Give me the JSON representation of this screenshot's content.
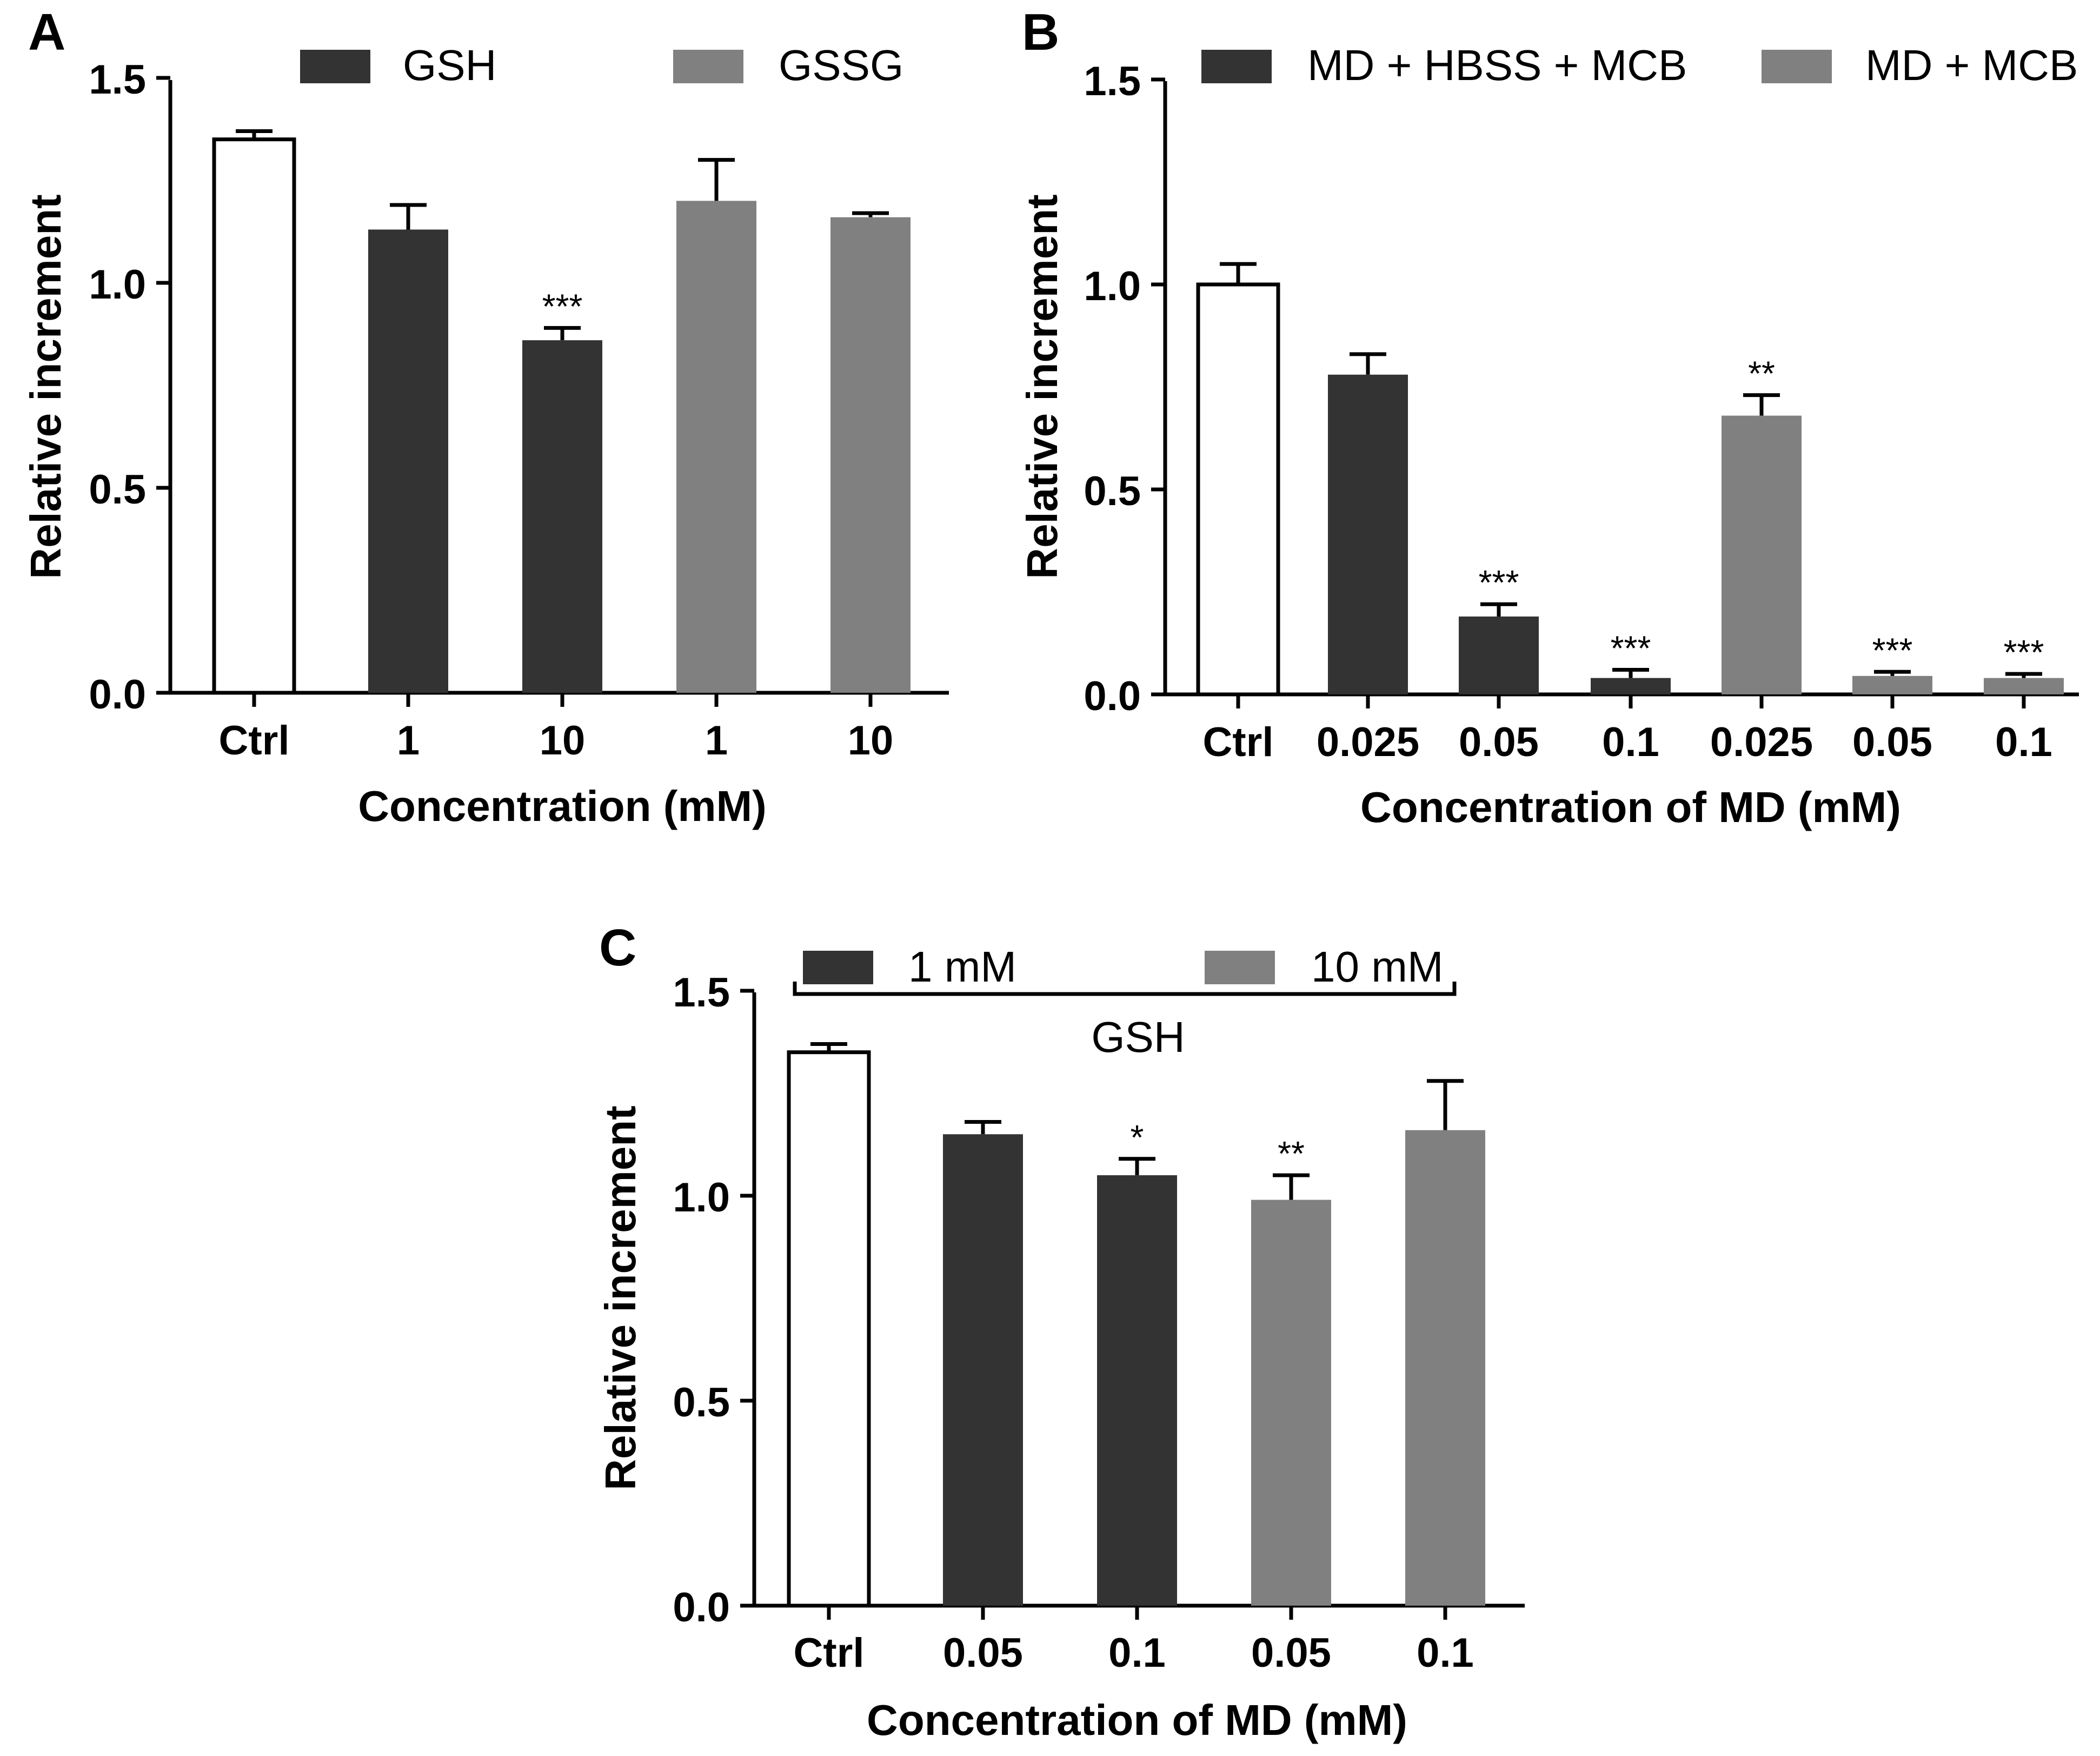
{
  "colors": {
    "ctrl_fill": "#ffffff",
    "dark": "#333333",
    "gray": "#808080",
    "axis": "#000000"
  },
  "chart_data": [
    {
      "panel": "A",
      "type": "bar",
      "xlabel": "Concentration (mM)",
      "ylabel": "Relative increment",
      "ylim": [
        0,
        1.5
      ],
      "yticks": [
        "0.0",
        "0.5",
        "1.0",
        "1.5"
      ],
      "tick_values": [
        0,
        0.5,
        1.0,
        1.5
      ],
      "legend": [
        {
          "label": "GSH",
          "group": "dark"
        },
        {
          "label": "GSSG",
          "group": "gray"
        }
      ],
      "bars": [
        {
          "category": "Ctrl",
          "value": 1.35,
          "error": 0.02,
          "group": "ctrl",
          "sig": ""
        },
        {
          "category": "1",
          "value": 1.13,
          "error": 0.06,
          "group": "dark",
          "sig": ""
        },
        {
          "category": "10",
          "value": 0.86,
          "error": 0.03,
          "group": "dark",
          "sig": "***"
        },
        {
          "category": "1",
          "value": 1.2,
          "error": 0.1,
          "group": "gray",
          "sig": ""
        },
        {
          "category": "10",
          "value": 1.16,
          "error": 0.01,
          "group": "gray",
          "sig": ""
        }
      ]
    },
    {
      "panel": "B",
      "type": "bar",
      "xlabel": "Concentration of MD (mM)",
      "ylabel": "Relative increment",
      "ylim": [
        0,
        1.5
      ],
      "yticks": [
        "0.0",
        "0.5",
        "1.0",
        "1.5"
      ],
      "tick_values": [
        0,
        0.5,
        1.0,
        1.5
      ],
      "legend": [
        {
          "label": "MD + HBSS + MCB",
          "group": "dark"
        },
        {
          "label": "MD + MCB",
          "group": "gray"
        }
      ],
      "bars": [
        {
          "category": "Ctrl",
          "value": 1.0,
          "error": 0.05,
          "group": "ctrl",
          "sig": ""
        },
        {
          "category": "0.025",
          "value": 0.78,
          "error": 0.05,
          "group": "dark",
          "sig": ""
        },
        {
          "category": "0.05",
          "value": 0.19,
          "error": 0.03,
          "group": "dark",
          "sig": "***"
        },
        {
          "category": "0.1",
          "value": 0.04,
          "error": 0.02,
          "group": "dark",
          "sig": "***"
        },
        {
          "category": "0.025",
          "value": 0.68,
          "error": 0.05,
          "group": "gray",
          "sig": "**"
        },
        {
          "category": "0.05",
          "value": 0.045,
          "error": 0.01,
          "group": "gray",
          "sig": "***"
        },
        {
          "category": "0.1",
          "value": 0.04,
          "error": 0.01,
          "group": "gray",
          "sig": "***"
        }
      ]
    },
    {
      "panel": "C",
      "type": "bar",
      "xlabel": "Concentration of MD (mM)",
      "ylabel": "Relative increment",
      "ylim": [
        0,
        1.5
      ],
      "yticks": [
        "0.0",
        "0.5",
        "1.0",
        "1.5"
      ],
      "tick_values": [
        0,
        0.5,
        1.0,
        1.5
      ],
      "legend": [
        {
          "label": "1 mM",
          "group": "dark"
        },
        {
          "label": "10 mM",
          "group": "gray"
        }
      ],
      "bracket_label": "GSH",
      "bars": [
        {
          "category": "Ctrl",
          "value": 1.35,
          "error": 0.02,
          "group": "ctrl",
          "sig": ""
        },
        {
          "category": "0.05",
          "value": 1.15,
          "error": 0.03,
          "group": "dark",
          "sig": ""
        },
        {
          "category": "0.1",
          "value": 1.05,
          "error": 0.04,
          "group": "dark",
          "sig": "*"
        },
        {
          "category": "0.05",
          "value": 0.99,
          "error": 0.06,
          "group": "gray",
          "sig": "**"
        },
        {
          "category": "0.1",
          "value": 1.16,
          "error": 0.12,
          "group": "gray",
          "sig": ""
        }
      ]
    }
  ]
}
